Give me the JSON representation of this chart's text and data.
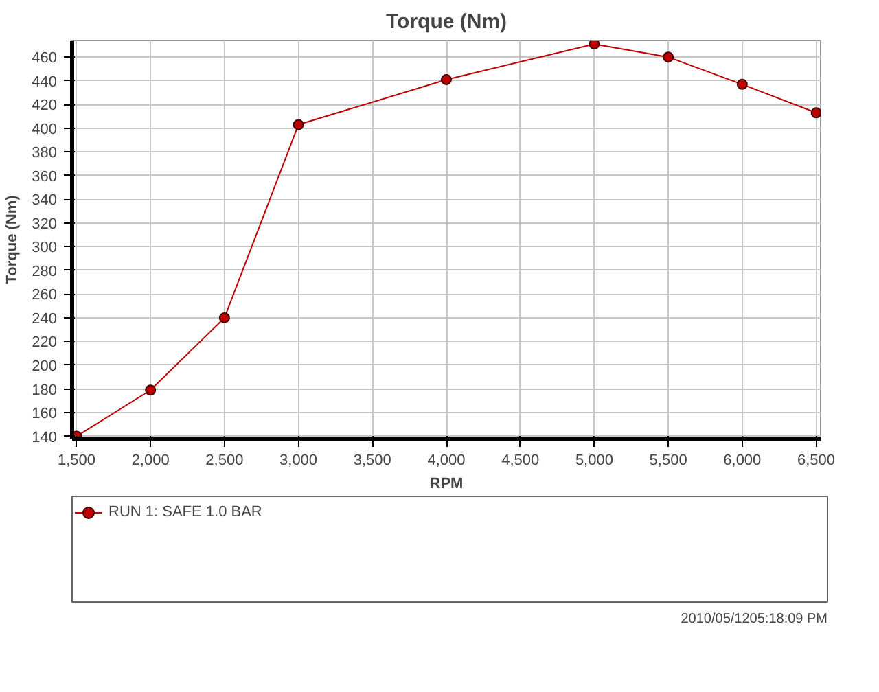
{
  "chart_data": {
    "type": "line",
    "title": "Torque (Nm)",
    "xlabel": "RPM",
    "ylabel": "Torque (Nm)",
    "x": [
      1500,
      2000,
      2500,
      3000,
      4000,
      5000,
      5500,
      6000,
      6500
    ],
    "series": [
      {
        "name": "RUN 1: SAFE 1.0 BAR",
        "color": "#c00000",
        "values": [
          140,
          179,
          240,
          403,
          441,
          471,
          460,
          437,
          413
        ]
      }
    ],
    "xlim": [
      1470,
      6530
    ],
    "ylim": [
      138,
      474
    ],
    "xticks": [
      {
        "value": 1500,
        "label": "1,500"
      },
      {
        "value": 2000,
        "label": "2,000"
      },
      {
        "value": 2500,
        "label": "2,500"
      },
      {
        "value": 3000,
        "label": "3,000"
      },
      {
        "value": 3500,
        "label": "3,500"
      },
      {
        "value": 4000,
        "label": "4,000"
      },
      {
        "value": 4500,
        "label": "4,500"
      },
      {
        "value": 5000,
        "label": "5,000"
      },
      {
        "value": 5500,
        "label": "5,500"
      },
      {
        "value": 6000,
        "label": "6,000"
      },
      {
        "value": 6500,
        "label": "6,500"
      }
    ],
    "yticks": [
      140,
      160,
      180,
      200,
      220,
      240,
      260,
      280,
      300,
      320,
      340,
      360,
      380,
      400,
      420,
      440,
      460
    ],
    "grid": true,
    "legend": "bottom",
    "marker": "circle",
    "line_style": "solid",
    "annotations": [
      "2010/05/1205:18:09 PM"
    ]
  }
}
